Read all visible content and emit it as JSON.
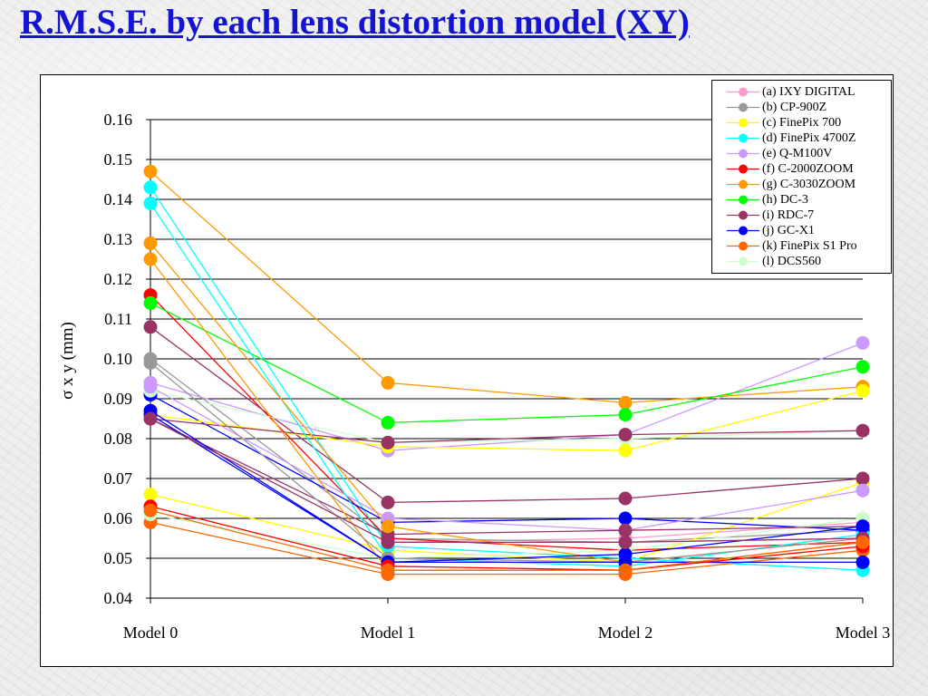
{
  "page": {
    "title": "R.M.S.E. by each lens distortion model (XY)"
  },
  "chart_data": {
    "type": "line",
    "title": "R.M.S.E. by each lens distortion model (XY)",
    "ylabel": "σ x y (mm)",
    "xlabel": "",
    "categories": [
      "Model 0",
      "Model 1",
      "Model 2",
      "Model 3"
    ],
    "ylim": [
      0.04,
      0.16
    ],
    "yticks": [
      "0.04",
      "0.05",
      "0.06",
      "0.07",
      "0.08",
      "0.09",
      "0.10",
      "0.11",
      "0.12",
      "0.13",
      "0.14",
      "0.15",
      "0.16"
    ],
    "grid": true,
    "legend_position": "top-right",
    "series": [
      {
        "name": "(a) IXY DIGITAL",
        "color": "#ff99cc",
        "values": [
          0.085,
          0.054,
          0.055,
          0.059
        ]
      },
      {
        "name": "(b) CP-900Z",
        "color": "#999999",
        "values": [
          0.1,
          0.055,
          0.054,
          0.057
        ]
      },
      {
        "name": "(c) FinePix 700",
        "color": "#ffff00",
        "values": [
          0.066,
          0.052,
          0.049,
          0.069
        ]
      },
      {
        "name": "(d) FinePix 4700Z",
        "color": "#00ffff",
        "values": [
          0.143,
          0.053,
          0.05,
          0.047
        ]
      },
      {
        "name": "(e) Q-M100V",
        "color": "#cc99ff",
        "values": [
          0.094,
          0.077,
          0.081,
          0.104
        ]
      },
      {
        "name": "(f) C-2000ZOOM",
        "color": "#ff0000",
        "values": [
          0.116,
          0.055,
          0.052,
          0.054
        ]
      },
      {
        "name": "(g) C-3030ZOOM",
        "color": "#ff9900",
        "values": [
          0.147,
          0.094,
          0.089,
          0.093
        ]
      },
      {
        "name": "(h) DC-3",
        "color": "#00ff00",
        "values": [
          0.114,
          0.084,
          0.086,
          0.098
        ]
      },
      {
        "name": "(i) RDC-7",
        "color": "#993366",
        "values": [
          0.108,
          0.064,
          0.065,
          0.07
        ]
      },
      {
        "name": "(j) GC-X1",
        "color": "#0000ff",
        "values": [
          0.091,
          0.059,
          0.06,
          0.057
        ]
      },
      {
        "name": "(k) FinePix S1 Pro",
        "color": "#ff6600",
        "values": [
          0.059,
          0.046,
          0.046,
          0.052
        ]
      },
      {
        "name": "(l) DCS560",
        "color": "#ccffcc",
        "values": [
          0.061,
          0.05,
          0.052,
          0.06
        ]
      },
      {
        "color": "#ccffcc",
        "values": [
          0.092,
          0.079,
          0.08,
          0.082
        ]
      },
      {
        "color": "#ffff00",
        "values": [
          0.086,
          0.078,
          0.077,
          0.092
        ]
      },
      {
        "color": "#993366",
        "values": [
          0.085,
          0.079,
          0.081,
          0.082
        ]
      },
      {
        "color": "#cc99ff",
        "values": [
          0.093,
          0.06,
          0.057,
          0.067
        ]
      },
      {
        "color": "#993366",
        "values": [
          0.085,
          0.056,
          0.057,
          0.058
        ]
      },
      {
        "color": "#00ffff",
        "values": [
          0.139,
          0.05,
          0.048,
          0.056
        ]
      },
      {
        "color": "#ff9900",
        "values": [
          0.129,
          0.058,
          0.049,
          0.055
        ]
      },
      {
        "color": "#ff9900",
        "values": [
          0.125,
          0.047,
          0.047,
          0.054
        ]
      },
      {
        "color": "#999999",
        "values": [
          0.099,
          0.05,
          0.049,
          0.055
        ]
      },
      {
        "color": "#0000ff",
        "values": [
          0.087,
          0.049,
          0.049,
          0.049
        ]
      },
      {
        "color": "#0000ff",
        "values": [
          0.086,
          0.049,
          0.051,
          0.058
        ]
      },
      {
        "color": "#993366",
        "values": [
          0.085,
          0.054,
          0.054,
          0.055
        ]
      },
      {
        "color": "#ff0000",
        "values": [
          0.063,
          0.048,
          0.047,
          0.053
        ]
      },
      {
        "color": "#ff6600",
        "values": [
          0.062,
          0.047,
          0.047,
          0.054
        ]
      }
    ]
  }
}
